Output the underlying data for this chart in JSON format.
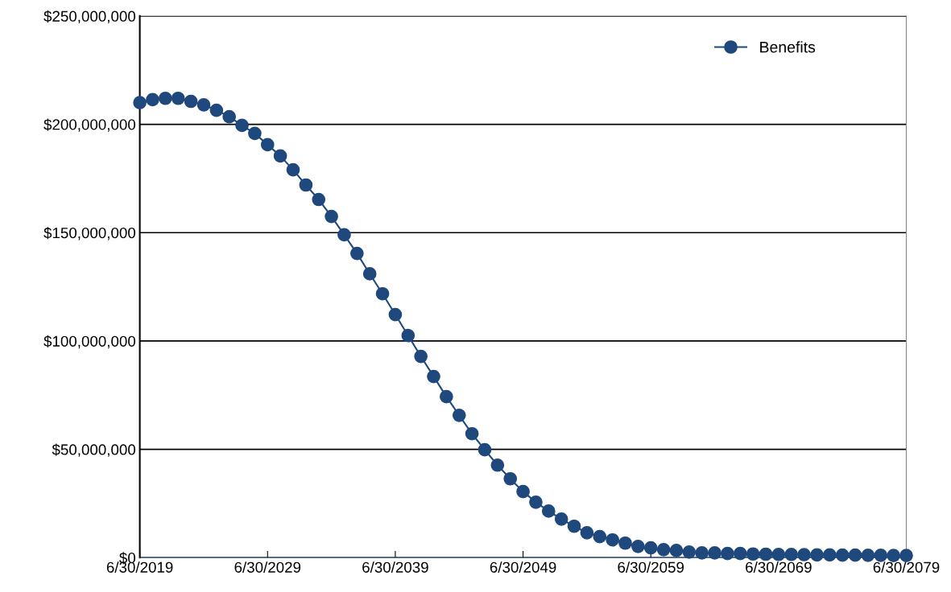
{
  "chart_data": {
    "type": "line",
    "marker": "circle",
    "line_style": "solid",
    "grid": "y",
    "legend": "top right",
    "x": [
      "2019-06-30",
      "2020-06-30",
      "2021-06-30",
      "2022-06-30",
      "2023-06-30",
      "2024-06-30",
      "2025-06-30",
      "2026-06-30",
      "2027-06-30",
      "2028-06-30",
      "2029-06-30",
      "2030-06-30",
      "2031-06-30",
      "2032-06-30",
      "2033-06-30",
      "2034-06-30",
      "2035-06-30",
      "2036-06-30",
      "2037-06-30",
      "2038-06-30",
      "2039-06-30",
      "2040-06-30",
      "2041-06-30",
      "2042-06-30",
      "2043-06-30",
      "2044-06-30",
      "2045-06-30",
      "2046-06-30",
      "2047-06-30",
      "2048-06-30",
      "2049-06-30",
      "2050-06-30",
      "2051-06-30",
      "2052-06-30",
      "2053-06-30",
      "2054-06-30",
      "2055-06-30",
      "2056-06-30",
      "2057-06-30",
      "2058-06-30",
      "2059-06-30",
      "2060-06-30",
      "2061-06-30",
      "2062-06-30",
      "2063-06-30",
      "2064-06-30",
      "2065-06-30",
      "2066-06-30",
      "2067-06-30",
      "2068-06-30",
      "2069-06-30",
      "2070-06-30",
      "2071-06-30",
      "2072-06-30",
      "2073-06-30",
      "2074-06-30",
      "2075-06-30",
      "2076-06-30",
      "2077-06-30",
      "2078-06-30",
      "2079-06-30"
    ],
    "series": [
      {
        "name": "Benefits",
        "color": "#1f497d",
        "values": [
          210000000,
          211400000,
          212000000,
          212000000,
          210600000,
          209000000,
          206500000,
          203500000,
          199500000,
          195800000,
          190600000,
          185400000,
          179000000,
          172000000,
          165300000,
          157500000,
          149000000,
          140400000,
          131000000,
          121800000,
          112200000,
          102500000,
          92900000,
          83600000,
          74300000,
          65700000,
          57200000,
          49800000,
          42700000,
          36400000,
          30500000,
          25600000,
          21500000,
          17800000,
          14500000,
          11500000,
          9700000,
          8200000,
          6700000,
          5200000,
          4500000,
          3700000,
          3300000,
          2600000,
          2200000,
          2200000,
          1900000,
          1900000,
          1700000,
          1600000,
          1500000,
          1500000,
          1400000,
          1300000,
          1300000,
          1200000,
          1200000,
          1100000,
          1100000,
          1000000,
          1000000
        ]
      }
    ],
    "xlim": [
      "2019-06-30",
      "2079-06-30"
    ],
    "xticks": [
      {
        "value": "2019-06-30",
        "label": "6/30/2019"
      },
      {
        "value": "2029-06-30",
        "label": "6/30/2029"
      },
      {
        "value": "2039-06-30",
        "label": "6/30/2039"
      },
      {
        "value": "2049-06-30",
        "label": "6/30/2049"
      },
      {
        "value": "2059-06-30",
        "label": "6/30/2059"
      },
      {
        "value": "2069-06-30",
        "label": "6/30/2069"
      },
      {
        "value": "2079-06-30",
        "label": "6/30/2079"
      }
    ],
    "ylim": [
      0,
      250000000
    ],
    "yticks": [
      {
        "value": 0,
        "label": "$0"
      },
      {
        "value": 50000000,
        "label": "$50,000,000"
      },
      {
        "value": 100000000,
        "label": "$100,000,000"
      },
      {
        "value": 150000000,
        "label": "$150,000,000"
      },
      {
        "value": 200000000,
        "label": "$200,000,000"
      },
      {
        "value": 250000000,
        "label": "$250,000,000"
      }
    ]
  }
}
